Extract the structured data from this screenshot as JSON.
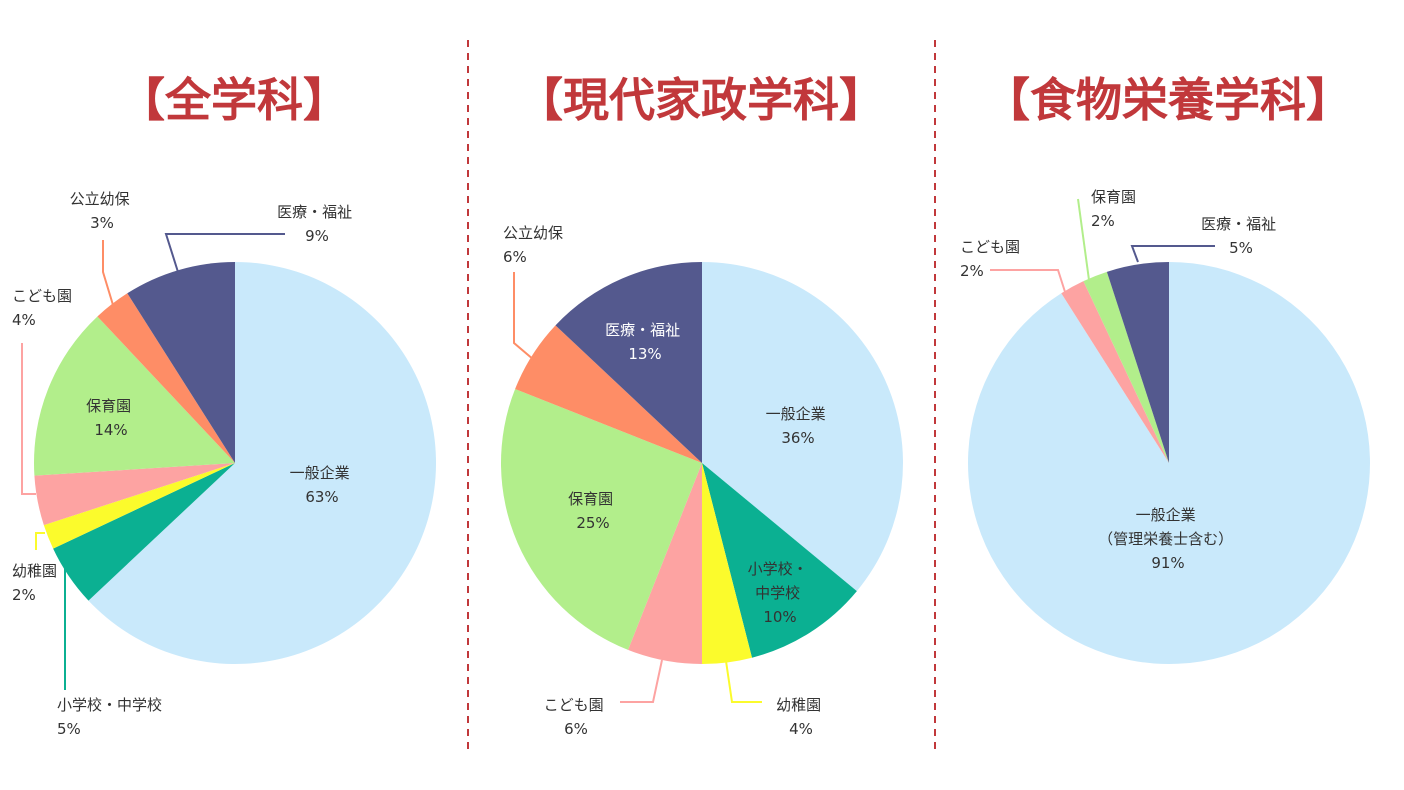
{
  "chart_data": [
    {
      "type": "pie",
      "title": "【全学科】",
      "slices": [
        {
          "label": "一般企業",
          "pct": "63%",
          "value": 63,
          "color": "#c9e9fb"
        },
        {
          "label": "小学校・中学校",
          "pct": "5%",
          "value": 5,
          "color": "#0bb092"
        },
        {
          "label": "幼稚園",
          "pct": "2%",
          "value": 2,
          "color": "#fbfb2c"
        },
        {
          "label": "こども園",
          "pct": "4%",
          "value": 4,
          "color": "#fda3a2"
        },
        {
          "label": "保育園",
          "pct": "14%",
          "value": 14,
          "color": "#b2ee8b"
        },
        {
          "label": "公立幼保",
          "pct": "3%",
          "value": 3,
          "color": "#fe8d66"
        },
        {
          "label": "医療・福祉",
          "pct": "9%",
          "value": 9,
          "color": "#54598e"
        }
      ]
    },
    {
      "type": "pie",
      "title": "【現代家政学科】",
      "slices": [
        {
          "label": "一般企業",
          "pct": "36%",
          "value": 36,
          "color": "#c9e9fb"
        },
        {
          "label": "小学校・中学校",
          "pct": "10%",
          "value": 10,
          "color": "#0bb092"
        },
        {
          "label": "幼稚園",
          "pct": "4%",
          "value": 4,
          "color": "#fbfb2c"
        },
        {
          "label": "こども園",
          "pct": "6%",
          "value": 6,
          "color": "#fda3a2"
        },
        {
          "label": "保育園",
          "pct": "25%",
          "value": 25,
          "color": "#b2ee8b"
        },
        {
          "label": "公立幼保",
          "pct": "6%",
          "value": 6,
          "color": "#fe8d66"
        },
        {
          "label": "医療・福祉",
          "pct": "13%",
          "value": 13,
          "color": "#54598e"
        }
      ]
    },
    {
      "type": "pie",
      "title": "【食物栄養学科】",
      "slices": [
        {
          "label": "一般企業",
          "sublabel": "（管理栄養士含む）",
          "pct": "91%",
          "value": 91,
          "color": "#c9e9fb"
        },
        {
          "label": "こども園",
          "pct": "2%",
          "value": 2,
          "color": "#fda3a2"
        },
        {
          "label": "保育園",
          "pct": "2%",
          "value": 2,
          "color": "#b2ee8b"
        },
        {
          "label": "医療・福祉",
          "pct": "5%",
          "value": 5,
          "color": "#54598e"
        }
      ]
    }
  ]
}
